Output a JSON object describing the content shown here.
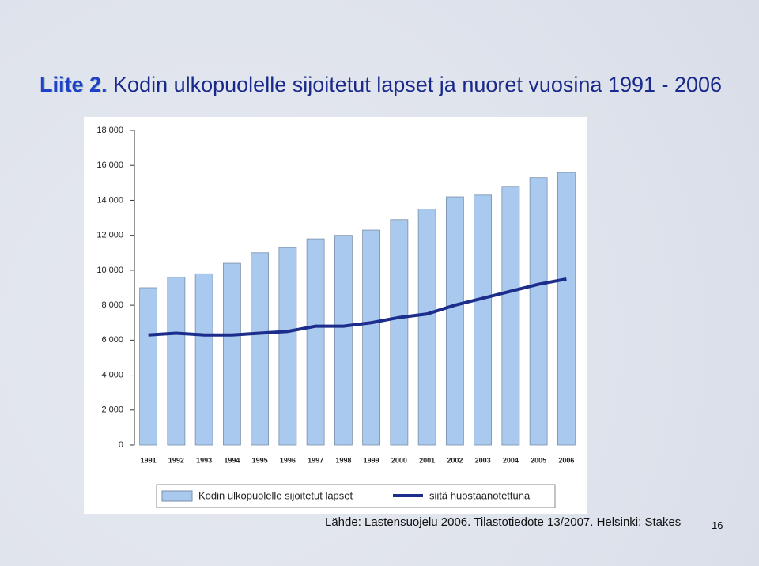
{
  "slide": {
    "label": "Liite 2.",
    "title": "Kodin ulkopuolelle sijoitetut lapset ja nuoret vuosina 1991 - 2006"
  },
  "chart_data": {
    "type": "bar",
    "categories": [
      "1991",
      "1992",
      "1993",
      "1994",
      "1995",
      "1996",
      "1997",
      "1998",
      "1999",
      "2000",
      "2001",
      "2002",
      "2003",
      "2004",
      "2005",
      "2006"
    ],
    "series": [
      {
        "name": "Kodin ulkopuolelle sijoitetut lapset",
        "type": "bar",
        "color": "#a9c9ee",
        "values": [
          9000,
          9600,
          9800,
          10400,
          11000,
          11300,
          11800,
          12000,
          12300,
          12900,
          13500,
          14200,
          14300,
          14800,
          15300,
          15600
        ]
      },
      {
        "name": "siitä huostaanotettuna",
        "type": "line",
        "color": "#1c2d8c",
        "values": [
          6300,
          6400,
          6300,
          6300,
          6400,
          6500,
          6800,
          6800,
          7000,
          7300,
          7500,
          8000,
          8400,
          8800,
          9200,
          9500
        ]
      }
    ],
    "ylim": [
      0,
      18000
    ],
    "yticks": [
      0,
      {
        "value": 2000,
        "label": "2 000"
      },
      {
        "value": 4000,
        "label": "4 000"
      },
      {
        "value": 6000,
        "label": "6 000"
      },
      {
        "value": 8000,
        "label": "8 000"
      },
      {
        "value": 10000,
        "label": "10 000"
      },
      {
        "value": 12000,
        "label": "12 000"
      },
      {
        "value": 14000,
        "label": "14 000"
      },
      {
        "value": 16000,
        "label": "16 000"
      },
      {
        "value": 18000,
        "label": "18 000"
      }
    ],
    "legend": "bottom"
  },
  "footer": {
    "source": "Lähde: Lastensuojelu 2006. Tilastotiedote 13/2007. Helsinki: Stakes",
    "page": "16"
  }
}
